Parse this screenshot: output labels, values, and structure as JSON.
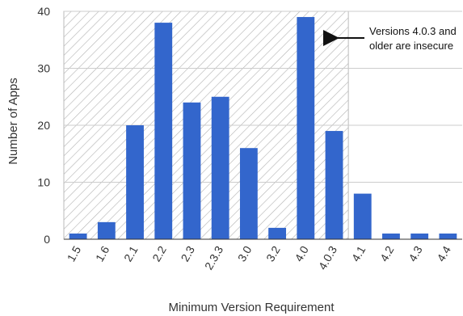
{
  "chart_data": {
    "type": "bar",
    "title": "",
    "xlabel": "Minimum Version Requirement",
    "ylabel": "Number of Apps",
    "categories": [
      "1.5",
      "1.6",
      "2.1",
      "2.2",
      "2.3",
      "2.3.3",
      "3.0",
      "3.2",
      "4.0",
      "4.0.3",
      "4.1",
      "4.2",
      "4.3",
      "4.4"
    ],
    "values": [
      1,
      3,
      20,
      38,
      24,
      25,
      16,
      2,
      39,
      19,
      8,
      1,
      1,
      1
    ],
    "ylim": [
      0,
      40
    ],
    "yticks": [
      "0",
      "10",
      "20",
      "30",
      "40"
    ],
    "grid": true,
    "bar_color": "#3366cc",
    "shaded_region": {
      "from_category": "1.5",
      "to_category": "4.0.3",
      "pattern": "diagonal-hatch"
    },
    "annotation": {
      "lines": [
        "Versions 4.0.3 and",
        "older are insecure"
      ],
      "arrow": "left"
    }
  }
}
